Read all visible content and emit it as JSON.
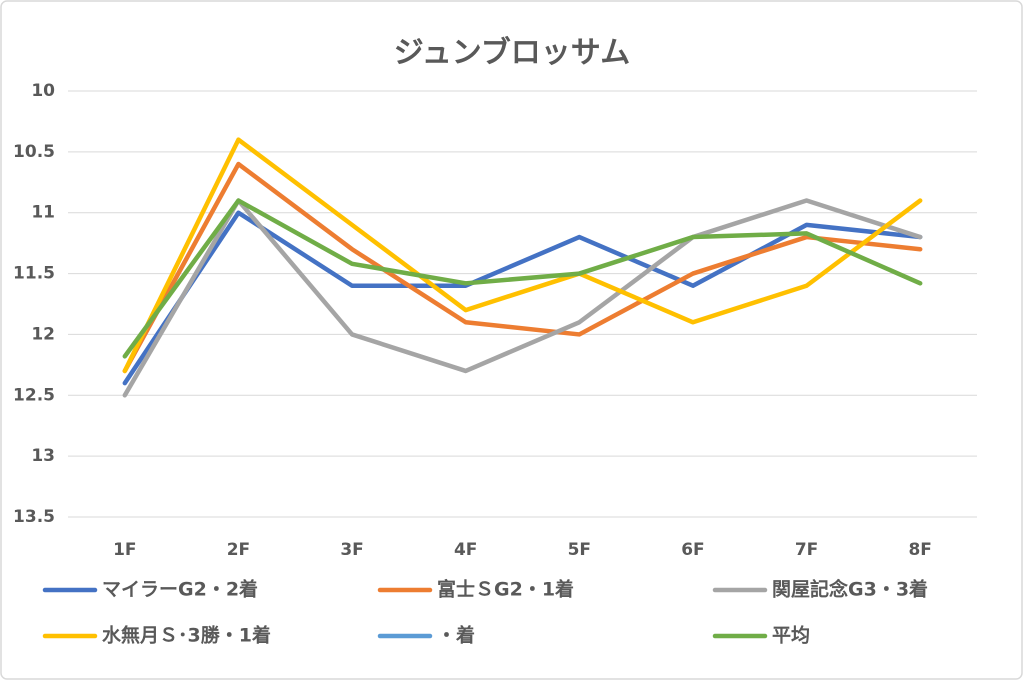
{
  "chart_data": {
    "type": "line",
    "title": "ジュンブロッサム",
    "categories": [
      "1F",
      "2F",
      "3F",
      "4F",
      "5F",
      "6F",
      "7F",
      "8F"
    ],
    "series": [
      {
        "name": "マイラーG2・2着",
        "color": "#4472c4",
        "values": [
          12.4,
          11.0,
          11.6,
          11.6,
          11.2,
          11.6,
          11.1,
          11.2
        ]
      },
      {
        "name": "富士ＳG2・1着",
        "color": "#ed7d31",
        "values": [
          12.3,
          10.6,
          11.3,
          11.9,
          12.0,
          11.5,
          11.2,
          11.3
        ]
      },
      {
        "name": "関屋記念G3・3着",
        "color": "#a5a5a5",
        "values": [
          12.5,
          10.9,
          12.0,
          12.3,
          11.9,
          11.2,
          10.9,
          11.2
        ]
      },
      {
        "name": "水無月Ｓ･3勝・1着",
        "color": "#ffc000",
        "values": [
          12.3,
          10.4,
          11.1,
          11.8,
          11.5,
          11.9,
          11.6,
          10.9
        ]
      },
      {
        "name": "・着",
        "color": "#5b9bd5",
        "values": [
          null,
          null,
          null,
          null,
          null,
          null,
          null,
          null
        ]
      },
      {
        "name": "平均",
        "color": "#70ad47",
        "values": [
          12.18,
          10.9,
          11.42,
          11.58,
          11.5,
          11.2,
          11.17,
          11.58
        ]
      }
    ],
    "ylim": [
      10,
      13.5
    ],
    "y_reversed": true,
    "yticks": [
      10,
      10.5,
      11,
      11.5,
      12,
      12.5,
      13,
      13.5
    ],
    "grid": true,
    "legend": "bottom"
  }
}
